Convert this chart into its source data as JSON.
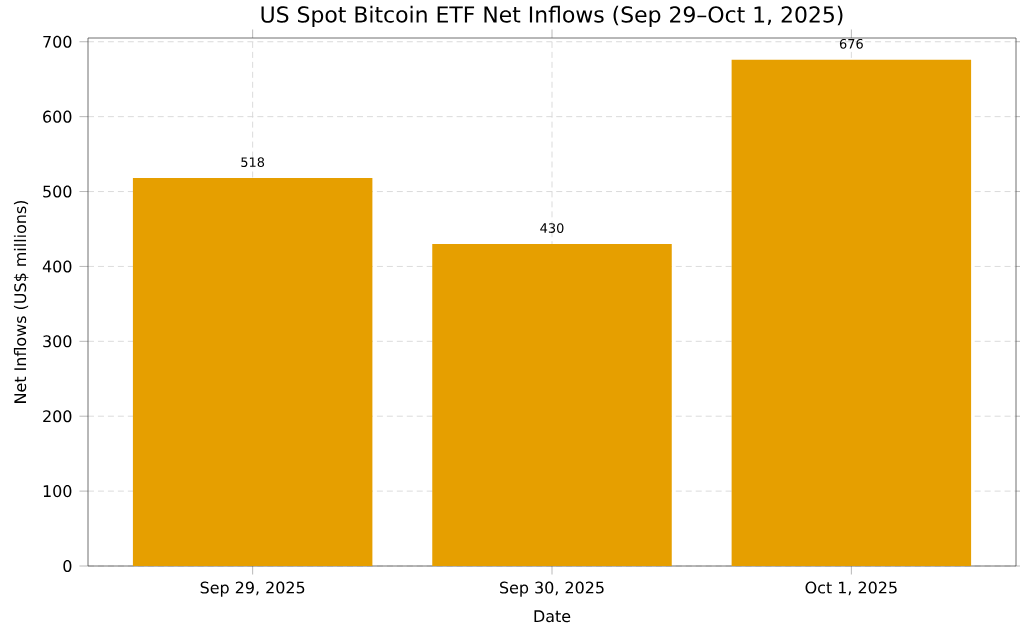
{
  "chart_data": {
    "type": "bar",
    "title": "US Spot Bitcoin ETF Net Inflows (Sep 29–Oct 1, 2025)",
    "xlabel": "Date",
    "ylabel": "Net Inflows (US$ millions)",
    "categories": [
      "Sep 29, 2025",
      "Sep 30, 2025",
      "Oct 1, 2025"
    ],
    "values": [
      518,
      430,
      676
    ],
    "color": "#e69f00",
    "data_labels": true,
    "ylim": [
      0,
      705
    ],
    "yticks": [
      0,
      100,
      200,
      300,
      400,
      500,
      600,
      700
    ],
    "grid": true
  }
}
